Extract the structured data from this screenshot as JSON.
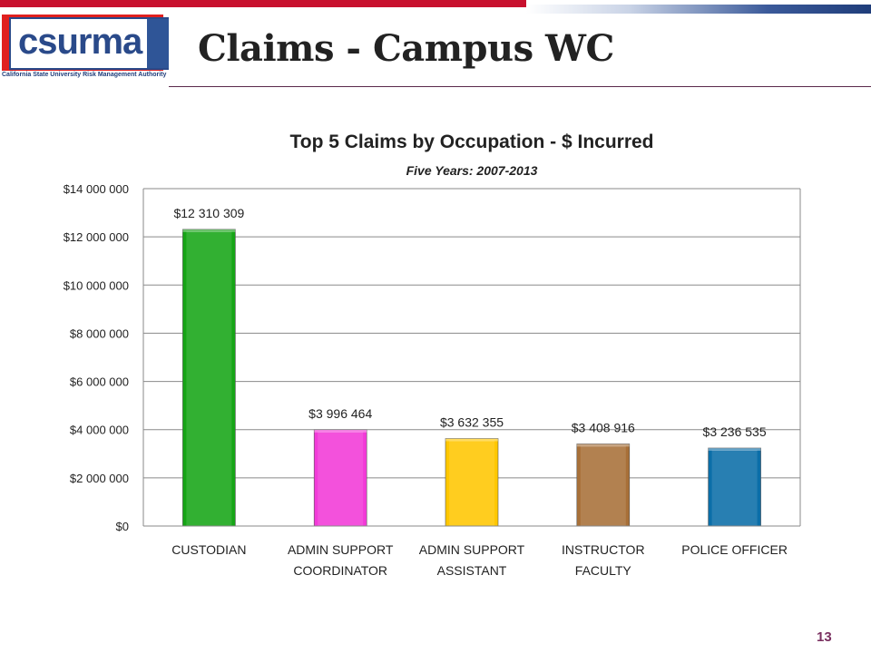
{
  "header": {
    "logo_text": "csurma",
    "logo_tagline": "California State University Risk Management Authority",
    "title": "Claims - Campus WC"
  },
  "page_number": "13",
  "colors": {
    "brand_red": "#c8102e",
    "brand_blue": "#2a4a8a"
  },
  "chart_data": {
    "type": "bar",
    "title": "Top 5 Claims by Occupation  - $ Incurred",
    "subtitle": "Five Years: 2007-2013",
    "categories": [
      [
        "CUSTODIAN"
      ],
      [
        "ADMIN SUPPORT",
        "COORDINATOR"
      ],
      [
        "ADMIN SUPPORT",
        "ASSISTANT"
      ],
      [
        "INSTRUCTOR",
        "FACULTY"
      ],
      [
        "POLICE OFFICER"
      ]
    ],
    "values": [
      12310309,
      3996464,
      3632355,
      3408916,
      3236535
    ],
    "data_labels": [
      "$12 310 309",
      "$3 996 464",
      "$3 632 355",
      "$3 408 916",
      "$3 236 535"
    ],
    "bar_colors": [
      "#16a516",
      "#f23ad8",
      "#ffc700",
      "#a87038",
      "#0b6ea8"
    ],
    "ylim": [
      0,
      14000000
    ],
    "yticks": [
      0,
      2000000,
      4000000,
      6000000,
      8000000,
      10000000,
      12000000,
      14000000
    ],
    "ytick_labels": [
      "$0",
      "$2 000 000",
      "$4 000 000",
      "$6 000 000",
      "$8 000 000",
      "$10 000 000",
      "$12 000 000",
      "$14 000 000"
    ],
    "grid": true,
    "legend": "none"
  }
}
